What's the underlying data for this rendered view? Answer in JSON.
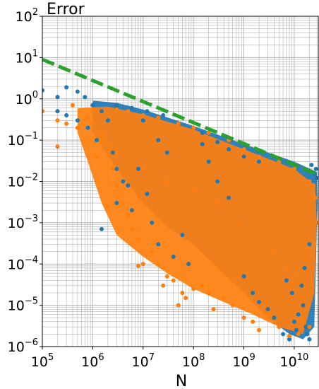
{
  "chart_data": {
    "type": "scatter",
    "title": "Error",
    "xlabel": "N",
    "ylabel": "",
    "xscale": "log",
    "yscale": "log",
    "xlim": [
      100000,
      30000000000
    ],
    "ylim": [
      1e-06,
      100
    ],
    "grid": "major and minor",
    "legend": "none",
    "x_ticks": [
      {
        "base": "10",
        "exp": "5",
        "value": 100000
      },
      {
        "base": "10",
        "exp": "6",
        "value": 1000000
      },
      {
        "base": "10",
        "exp": "7",
        "value": 10000000
      },
      {
        "base": "10",
        "exp": "8",
        "value": 100000000
      },
      {
        "base": "10",
        "exp": "9",
        "value": 1000000000
      },
      {
        "base": "10",
        "exp": "10",
        "value": 10000000000
      }
    ],
    "y_ticks": [
      {
        "base": "10",
        "exp": "2",
        "value": 100
      },
      {
        "base": "10",
        "exp": "1",
        "value": 10
      },
      {
        "base": "10",
        "exp": "0",
        "value": 1
      },
      {
        "base": "10",
        "exp": "−1",
        "value": 0.1
      },
      {
        "base": "10",
        "exp": "−2",
        "value": 0.01
      },
      {
        "base": "10",
        "exp": "−3",
        "value": 0.001
      },
      {
        "base": "10",
        "exp": "−4",
        "value": 0.0001
      },
      {
        "base": "10",
        "exp": "−5",
        "value": 1e-05
      },
      {
        "base": "10",
        "exp": "−6",
        "value": 1e-06
      }
    ],
    "reference_line": {
      "style": "dashed",
      "color": "#2ca02c",
      "points": [
        [
          100000,
          9.0
        ],
        [
          30000000000,
          0.0145
        ]
      ]
    },
    "series": [
      {
        "color": "#1f77b4",
        "points": [
          [
            100000,
            1.6
          ],
          [
            200000,
            1.1
          ],
          [
            300000,
            1.9
          ],
          [
            500000,
            1.5
          ],
          [
            700000,
            1.1
          ],
          [
            200000,
            0.5
          ],
          [
            300000,
            0.4
          ],
          [
            500000,
            0.3
          ],
          [
            800000,
            0.2
          ],
          [
            1000000,
            0.7
          ],
          [
            1500000,
            0.5
          ],
          [
            2000000,
            0.3
          ],
          [
            1200000,
            0.1
          ],
          [
            2500000,
            0.05
          ],
          [
            3000000,
            0.02
          ],
          [
            4000000,
            0.01
          ],
          [
            5000000,
            0.008
          ],
          [
            1500000,
            0.0007
          ],
          [
            3000000,
            0.003
          ],
          [
            6000000,
            0.002
          ],
          [
            10000000,
            0.3
          ],
          [
            20000000,
            0.1
          ],
          [
            30000000,
            0.05
          ],
          [
            8000000,
            0.02
          ],
          [
            12000000,
            0.005
          ],
          [
            15000000,
            0.001
          ],
          [
            20000000,
            0.0003
          ],
          [
            40000000,
            0.00015
          ],
          [
            60000000,
            0.0005
          ],
          [
            80000000,
            0.0001
          ],
          [
            100000000,
            0.2
          ],
          [
            150000000,
            0.08
          ],
          [
            200000000,
            0.03
          ],
          [
            300000000,
            0.01
          ],
          [
            500000000,
            0.004
          ],
          [
            800000000,
            0.001
          ],
          [
            1000000000,
            5e-05
          ],
          [
            1500000000,
            2e-05
          ],
          [
            2000000000,
            1.2e-05
          ],
          [
            3000000000,
            8e-06
          ],
          [
            4000000000,
            5e-06
          ],
          [
            5000000000,
            3e-06
          ],
          [
            6000000000,
            2e-06
          ],
          [
            8000000000,
            1.5e-06
          ],
          [
            10000000000,
            4e-06
          ],
          [
            12000000000,
            6e-06
          ],
          [
            15000000000,
            1e-05
          ],
          [
            18000000000,
            2e-06
          ],
          [
            20000000000,
            1.5e-06
          ],
          [
            25000000000,
            0.015
          ],
          [
            28000000000,
            0.012
          ],
          [
            27000000000,
            0.02
          ],
          [
            22000000000,
            0.025
          ],
          [
            1000000000,
            0.04
          ],
          [
            2000000000,
            0.03
          ],
          [
            500000000,
            0.06
          ],
          [
            300000000,
            0.09
          ],
          [
            150000000,
            0.15
          ],
          [
            50000000,
            0.25
          ],
          [
            25000000,
            0.4
          ],
          [
            12000000,
            0.5
          ],
          [
            6000000,
            0.6
          ],
          [
            3000000,
            0.7
          ],
          [
            9000000000,
            2e-05
          ],
          [
            7000000000,
            4e-05
          ],
          [
            14000000000,
            3e-05
          ],
          [
            20000000000,
            0.0003
          ],
          [
            16000000000,
            8e-05
          ],
          [
            11000000000,
            2.5e-06
          ],
          [
            17000000000,
            3e-06
          ]
        ]
      },
      {
        "color": "#ff7f0e",
        "points": [
          [
            100000,
            0.5
          ],
          [
            200000,
            0.3
          ],
          [
            200000,
            0.07
          ],
          [
            300000,
            0.25
          ],
          [
            500000,
            0.2
          ],
          [
            400000,
            0.7
          ],
          [
            800000,
            0.35
          ],
          [
            1000000,
            0.25
          ],
          [
            1500000,
            0.15
          ],
          [
            2000000,
            0.08
          ],
          [
            1200000,
            0.04
          ],
          [
            2500000,
            0.02
          ],
          [
            3000000,
            0.008
          ],
          [
            2000000,
            0.0025
          ],
          [
            4000000,
            0.003
          ],
          [
            5000000,
            0.0015
          ],
          [
            6000000,
            0.0007
          ],
          [
            8000000,
            0.0004
          ],
          [
            10000000,
            0.0001
          ],
          [
            8000000,
            9e-05
          ],
          [
            15000000,
            0.0002
          ],
          [
            20000000,
            0.0001
          ],
          [
            30000000,
            5e-05
          ],
          [
            25000000,
            3e-05
          ],
          [
            40000000,
            4e-05
          ],
          [
            60000000,
            2e-05
          ],
          [
            50000000,
            1e-05
          ],
          [
            70000000,
            1.5e-05
          ],
          [
            100000000,
            2.5e-05
          ],
          [
            150000000,
            3e-05
          ],
          [
            200000000,
            2e-05
          ],
          [
            250000000,
            8e-06
          ],
          [
            400000000,
            1.5e-05
          ],
          [
            600000000,
            1e-05
          ],
          [
            1000000000,
            5e-06
          ],
          [
            1500000000,
            4e-06
          ],
          [
            2000000000,
            2.5e-06
          ],
          [
            3000000000,
            6e-06
          ],
          [
            5000000000,
            3e-06
          ],
          [
            8000000000,
            1.8e-06
          ],
          [
            12000000000,
            2e-06
          ],
          [
            15000000000,
            4e-06
          ],
          [
            20000000000,
            3e-06
          ],
          [
            25000000000,
            0.0003
          ],
          [
            28000000000,
            0.001
          ],
          [
            26000000000,
            0.004
          ],
          [
            24000000000,
            0.008
          ],
          [
            20000000000,
            0.01
          ],
          [
            10000000000,
            0.02
          ],
          [
            5000000000,
            0.03
          ],
          [
            2000000000,
            0.04
          ],
          [
            1000000000,
            0.06
          ],
          [
            500000000,
            0.1
          ],
          [
            200000000,
            0.15
          ],
          [
            100000000,
            0.2
          ],
          [
            50000000,
            0.25
          ],
          [
            20000000,
            0.35
          ],
          [
            10000000,
            0.4
          ],
          [
            5000000,
            0.5
          ],
          [
            3000000,
            0.55
          ],
          [
            800000000,
            0.001
          ],
          [
            300000000,
            0.003
          ],
          [
            100000000,
            0.006
          ],
          [
            30000000,
            0.01
          ],
          [
            10000000,
            0.02
          ],
          [
            3000000,
            0.05
          ],
          [
            1500000,
            0.1
          ],
          [
            7000000000,
            8e-05
          ],
          [
            4000000000,
            0.0002
          ],
          [
            12000000000,
            5e-05
          ]
        ]
      }
    ]
  }
}
